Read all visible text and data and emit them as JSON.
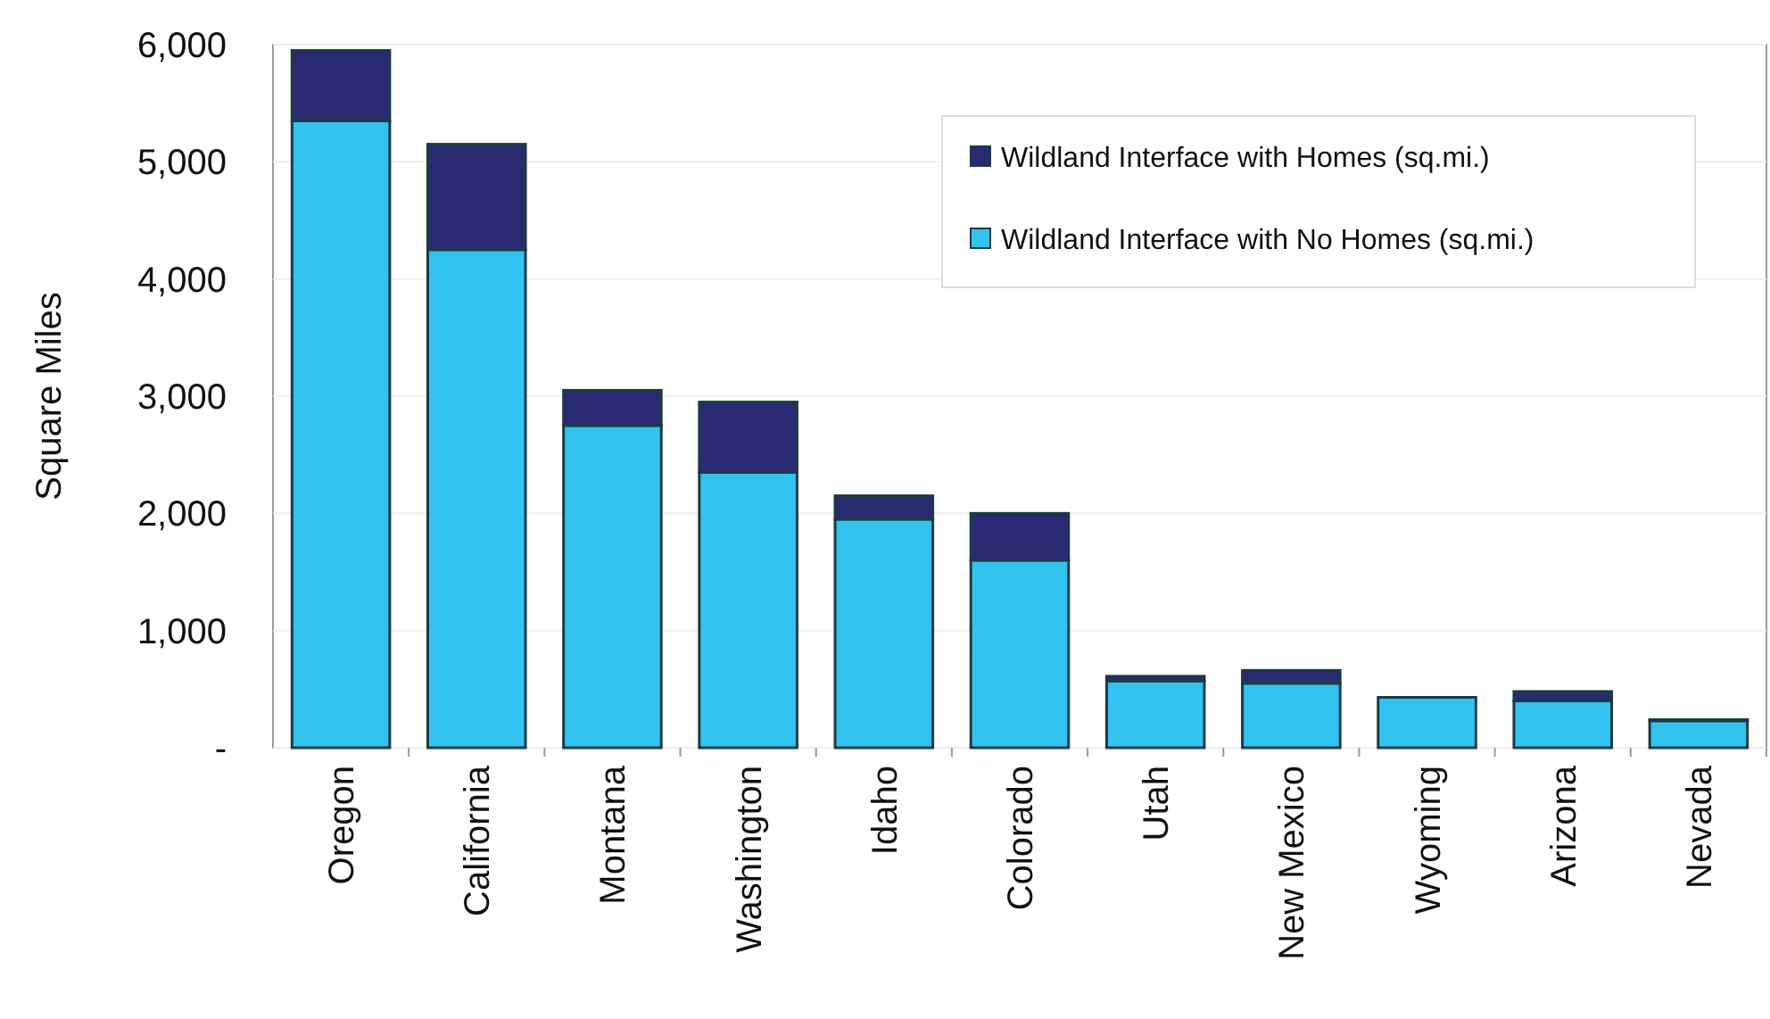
{
  "chart_data": {
    "type": "bar",
    "ylabel": "Square Miles",
    "stacked": true,
    "grid": "y",
    "legend": "top right",
    "categories": [
      "Oregon",
      "California",
      "Montana",
      "Washington",
      "Idaho",
      "Colorado",
      "Utah",
      "New Mexico",
      "Wyoming",
      "Arizona",
      "Nevada"
    ],
    "series": [
      {
        "name": "Wildland Interface with No Homes (sq.mi.)",
        "color": "#33c3ef",
        "values": [
          5350,
          4250,
          2750,
          2350,
          1950,
          1600,
          570,
          550,
          430,
          400,
          230
        ]
      },
      {
        "name": "Wildland Interface with Homes (sq.mi.)",
        "color": "#2a2a72",
        "values": [
          600,
          900,
          300,
          600,
          200,
          400,
          40,
          110,
          0,
          80,
          10
        ]
      }
    ],
    "ylim": [
      0,
      6000
    ],
    "yticks": [
      {
        "value": 0,
        "label": "-"
      },
      {
        "value": 1000,
        "label": "1,000"
      },
      {
        "value": 2000,
        "label": "2,000"
      },
      {
        "value": 3000,
        "label": "3,000"
      },
      {
        "value": 4000,
        "label": "4,000"
      },
      {
        "value": 5000,
        "label": "5,000"
      },
      {
        "value": 6000,
        "label": "6,000"
      }
    ]
  }
}
